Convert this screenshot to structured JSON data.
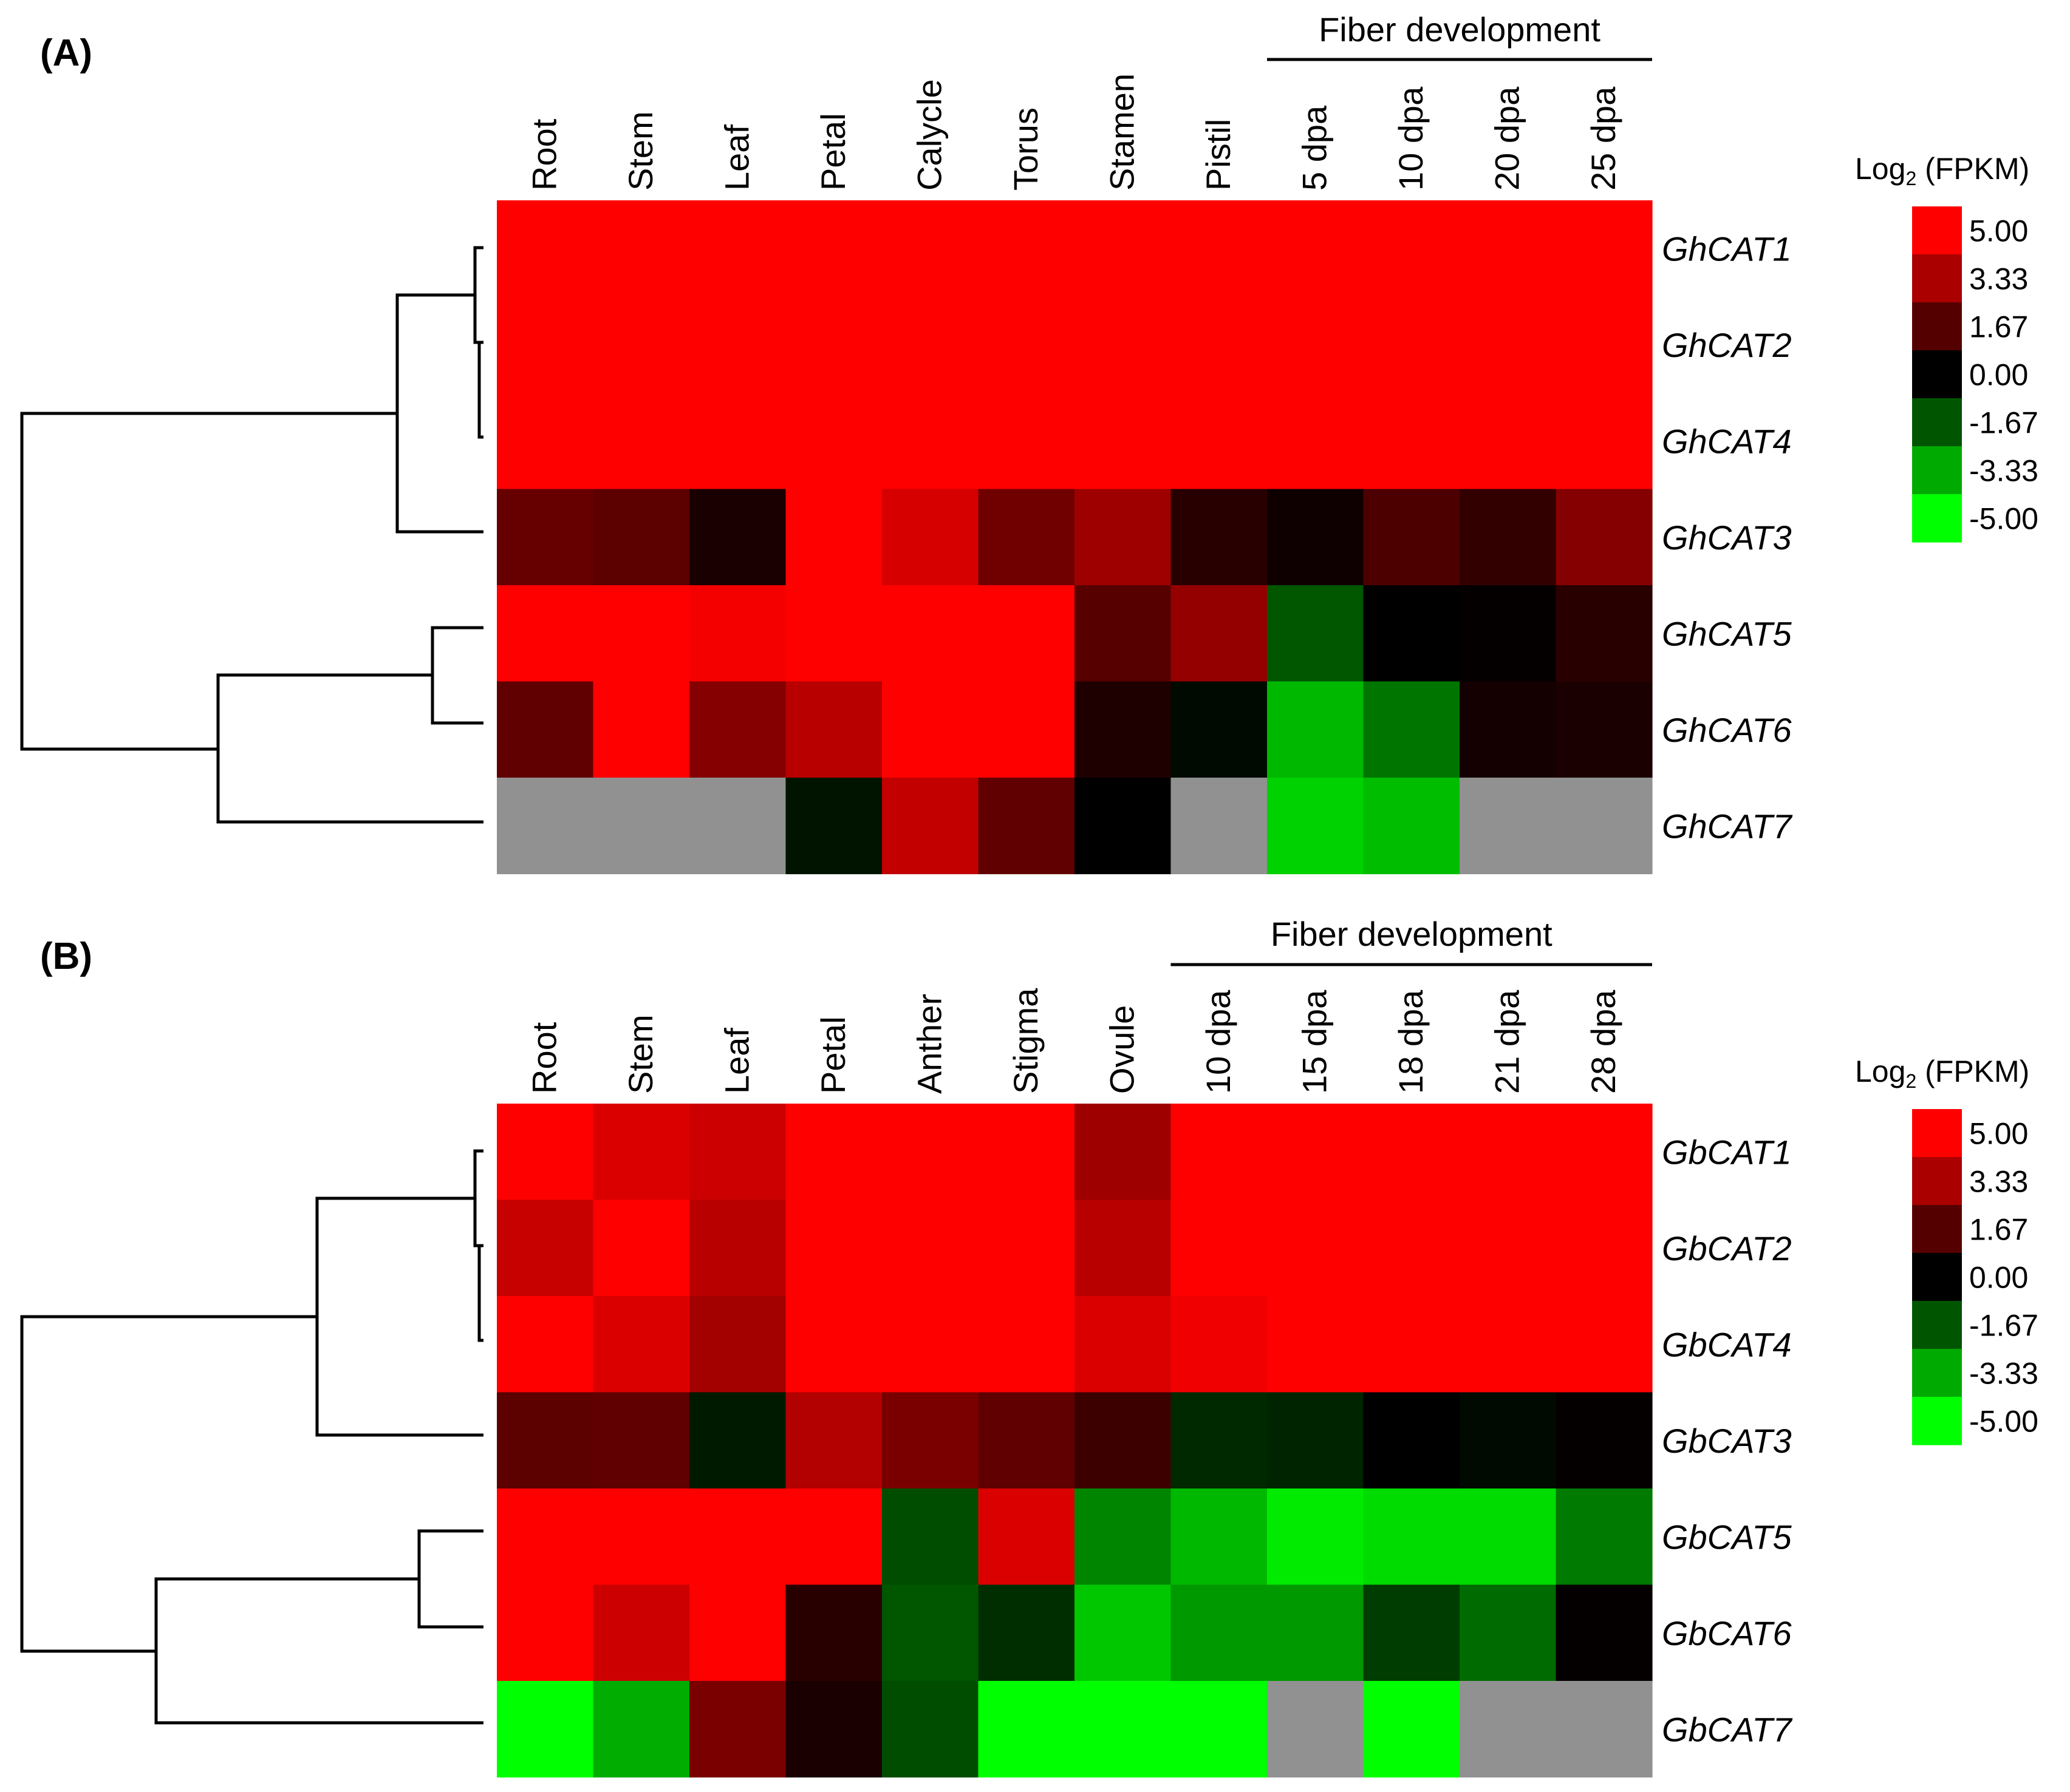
{
  "chart_data": [
    {
      "type": "heatmap",
      "panel": "(A)",
      "columns": [
        "Root",
        "Stem",
        "Leaf",
        "Petal",
        "Calycle",
        "Torus",
        "Stamen",
        "Pistil",
        "5 dpa",
        "10 dpa",
        "20 dpa",
        "25 dpa"
      ],
      "rows": [
        "GhCAT1",
        "GhCAT2",
        "GhCAT4",
        "GhCAT3",
        "GhCAT5",
        "GhCAT6",
        "GhCAT7"
      ],
      "values": [
        [
          5,
          5,
          5,
          5,
          5,
          5,
          5,
          5,
          5,
          5,
          5,
          5
        ],
        [
          5,
          5,
          5,
          5,
          5,
          5,
          5,
          5,
          5,
          5,
          5,
          5
        ],
        [
          5,
          5,
          5,
          5,
          5,
          5,
          5,
          5,
          5,
          5,
          5,
          5
        ],
        [
          2.0,
          1.8,
          0.5,
          5,
          4.2,
          2.2,
          3.1,
          0.8,
          0.3,
          1.5,
          1.0,
          2.6
        ],
        [
          5,
          5,
          4.8,
          5,
          5,
          5,
          1.7,
          2.9,
          -1.7,
          0,
          0.1,
          0.8
        ],
        [
          1.9,
          5,
          2.6,
          3.6,
          5,
          5,
          0.6,
          -0.2,
          -3.6,
          -2.3,
          0.4,
          0.5
        ],
        [
          null,
          null,
          null,
          -0.4,
          3.8,
          1.9,
          0,
          null,
          -4.1,
          -3.7,
          null,
          null
        ]
      ],
      "group_header": "Fiber development",
      "group_columns": [
        "5 dpa",
        "10 dpa",
        "20 dpa",
        "25 dpa"
      ],
      "legend": {
        "title_base": "Log",
        "title_sub": "2",
        "title_rest": " (FPKM)",
        "ticks": [
          "5.00",
          "3.33",
          "1.67",
          "0.00",
          "-1.67",
          "-3.33",
          "-5.00"
        ]
      },
      "colors": {
        "high": "#ff0000",
        "mid": "#000000",
        "low": "#00ff00",
        "missing": "#919191"
      }
    },
    {
      "type": "heatmap",
      "panel": "(B)",
      "columns": [
        "Root",
        "Stem",
        "Leaf",
        "Petal",
        "Anther",
        "Stigma",
        "Ovule",
        "10 dpa",
        "15 dpa",
        "18 dpa",
        "21 dpa",
        "28 dpa"
      ],
      "rows": [
        "GbCAT1",
        "GbCAT2",
        "GbCAT4",
        "GbCAT3",
        "GbCAT5",
        "GbCAT6",
        "GbCAT7"
      ],
      "values": [
        [
          5,
          4.3,
          4.0,
          5,
          5,
          5,
          3.1,
          5,
          5,
          5,
          5,
          5
        ],
        [
          3.9,
          5,
          3.6,
          5,
          5,
          5,
          3.6,
          5,
          5,
          5,
          5,
          5
        ],
        [
          5,
          4.3,
          3.2,
          5,
          5,
          5,
          4.3,
          4.7,
          5,
          5,
          5,
          5
        ],
        [
          1.8,
          1.9,
          -0.5,
          3.5,
          2.4,
          1.9,
          1.2,
          -0.8,
          -0.7,
          0,
          -0.2,
          0.1
        ],
        [
          5,
          5,
          5,
          5,
          -1.5,
          4.3,
          -2.6,
          -3.6,
          -4.6,
          -4.3,
          -4.3,
          -2.4
        ],
        [
          5,
          4.0,
          5,
          0.8,
          -1.7,
          -0.9,
          -3.9,
          -3.0,
          -3.0,
          -1.2,
          -2.1,
          0.1
        ],
        [
          -5,
          -3.4,
          2.4,
          0.5,
          -1.5,
          -5,
          -5,
          -5,
          null,
          -5,
          null,
          null
        ]
      ],
      "group_header": "Fiber development",
      "group_columns": [
        "10 dpa",
        "15 dpa",
        "18 dpa",
        "21 dpa",
        "28 dpa"
      ],
      "legend": {
        "title_base": "Log",
        "title_sub": "2",
        "title_rest": " (FPKM)",
        "ticks": [
          "5.00",
          "3.33",
          "1.67",
          "0.00",
          "-1.67",
          "-3.33",
          "-5.00"
        ]
      },
      "colors": {
        "high": "#ff0000",
        "mid": "#000000",
        "low": "#00ff00",
        "missing": "#919191"
      }
    }
  ]
}
